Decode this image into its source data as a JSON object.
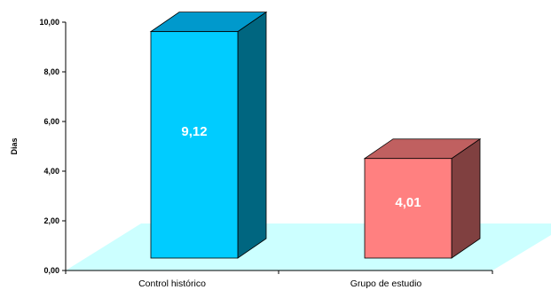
{
  "chart_data": {
    "type": "bar",
    "style": "3d",
    "categories": [
      "Control histórico",
      "Grupo de estudio"
    ],
    "values": [
      9.12,
      4.01
    ],
    "data_labels": [
      "9,12",
      "4,01"
    ],
    "ylabel": "Dias",
    "ylim": [
      0,
      10
    ],
    "y_ticks": [
      0,
      2,
      4,
      6,
      8,
      10
    ],
    "y_tick_labels": [
      "0,00",
      "2,00",
      "4,00",
      "6,00",
      "8,00",
      "10,00"
    ],
    "grid": false,
    "legend": "none",
    "colors": {
      "bars": [
        {
          "front": "#00CCFF",
          "top": "#0099CC",
          "side": "#006680"
        },
        {
          "front": "#FF8080",
          "top": "#C06060",
          "side": "#804040"
        }
      ],
      "floor": "#CCFFFF",
      "axis": "#000000"
    }
  }
}
